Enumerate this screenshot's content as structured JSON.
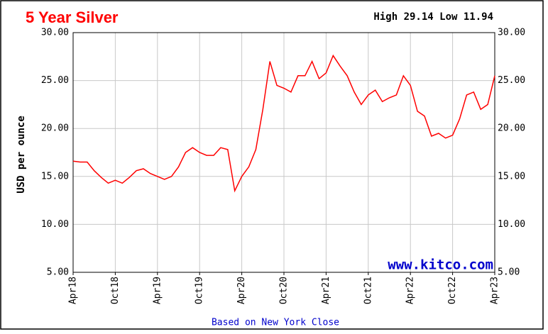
{
  "chart_data": {
    "type": "line",
    "title": "5 Year Silver",
    "annotation": "High 29.14 Low 11.94",
    "watermark": "www.kitco.com",
    "footnote": "Based on New York Close",
    "y_label": "USD per ounce",
    "x": [
      "2018-04",
      "2018-05",
      "2018-06",
      "2018-07",
      "2018-08",
      "2018-09",
      "2018-10",
      "2018-11",
      "2018-12",
      "2019-01",
      "2019-02",
      "2019-03",
      "2019-04",
      "2019-05",
      "2019-06",
      "2019-07",
      "2019-08",
      "2019-09",
      "2019-10",
      "2019-11",
      "2019-12",
      "2020-01",
      "2020-02",
      "2020-03",
      "2020-04",
      "2020-05",
      "2020-06",
      "2020-07",
      "2020-08",
      "2020-09",
      "2020-10",
      "2020-11",
      "2020-12",
      "2021-01",
      "2021-02",
      "2021-03",
      "2021-04",
      "2021-05",
      "2021-06",
      "2021-07",
      "2021-08",
      "2021-09",
      "2021-10",
      "2021-11",
      "2021-12",
      "2022-01",
      "2022-02",
      "2022-03",
      "2022-04",
      "2022-05",
      "2022-06",
      "2022-07",
      "2022-08",
      "2022-09",
      "2022-10",
      "2022-11",
      "2022-12",
      "2023-01",
      "2023-02",
      "2023-03",
      "2023-04"
    ],
    "series": [
      {
        "name": "Silver",
        "color": "#ff0000",
        "values": [
          16.6,
          16.5,
          16.5,
          15.6,
          14.9,
          14.3,
          14.6,
          14.3,
          14.9,
          15.6,
          15.8,
          15.3,
          15.0,
          14.7,
          15.0,
          16.0,
          17.5,
          18.0,
          17.5,
          17.2,
          17.2,
          18.0,
          17.8,
          13.5,
          15.0,
          16.0,
          17.8,
          22.0,
          27.0,
          24.5,
          24.2,
          23.8,
          25.5,
          25.5,
          27.0,
          25.2,
          25.8,
          27.6,
          26.5,
          25.5,
          23.8,
          22.5,
          23.5,
          24.0,
          22.8,
          23.2,
          23.5,
          25.5,
          24.5,
          21.8,
          21.3,
          19.2,
          19.5,
          19.0,
          19.3,
          21.0,
          23.5,
          23.8,
          22.0,
          22.5,
          25.5
        ]
      }
    ],
    "xlim": [
      "2018-04",
      "2023-04"
    ],
    "xticks": [
      {
        "value": "2018-04",
        "label": "Apr18"
      },
      {
        "value": "2018-10",
        "label": "Oct18"
      },
      {
        "value": "2019-04",
        "label": "Apr19"
      },
      {
        "value": "2019-10",
        "label": "Oct19"
      },
      {
        "value": "2020-04",
        "label": "Apr20"
      },
      {
        "value": "2020-10",
        "label": "Oct20"
      },
      {
        "value": "2021-04",
        "label": "Apr21"
      },
      {
        "value": "2021-10",
        "label": "Oct21"
      },
      {
        "value": "2022-04",
        "label": "Apr22"
      },
      {
        "value": "2022-10",
        "label": "Oct22"
      },
      {
        "value": "2023-04",
        "label": "Apr23"
      }
    ],
    "ylim": [
      5,
      30
    ],
    "yticks": [
      {
        "value": 5,
        "label": "5.00"
      },
      {
        "value": 10,
        "label": "10.00"
      },
      {
        "value": 15,
        "label": "15.00"
      },
      {
        "value": 20,
        "label": "20.00"
      },
      {
        "value": 25,
        "label": "25.00"
      },
      {
        "value": 30,
        "label": "30.00"
      }
    ],
    "grid": true
  }
}
